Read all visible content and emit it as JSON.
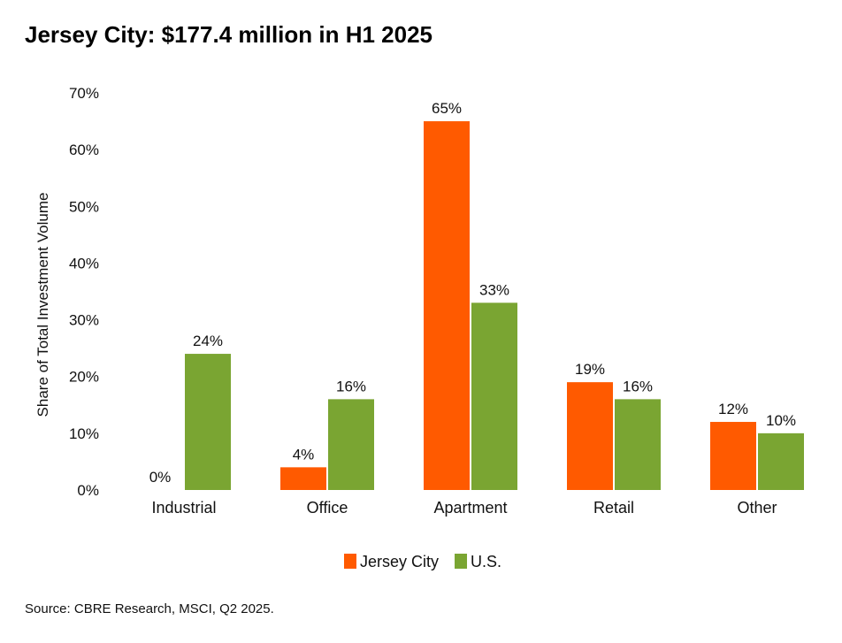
{
  "chart_data": {
    "type": "bar",
    "title": "Jersey City: $177.4 million in H1 2025",
    "ylabel": "Share of Total Investment Volume",
    "xlabel": "",
    "ylim": [
      0,
      70
    ],
    "yticks": [
      0,
      10,
      20,
      30,
      40,
      50,
      60,
      70
    ],
    "ytick_labels": [
      "0%",
      "10%",
      "20%",
      "30%",
      "40%",
      "50%",
      "60%",
      "70%"
    ],
    "categories": [
      "Industrial",
      "Office",
      "Apartment",
      "Retail",
      "Other"
    ],
    "series": [
      {
        "name": "Jersey City",
        "color": "#ff5a00",
        "values": [
          0,
          4,
          65,
          19,
          12
        ],
        "labels": [
          "0%",
          "4%",
          "65%",
          "19%",
          "12%"
        ]
      },
      {
        "name": "U.S.",
        "color": "#7aa532",
        "values": [
          24,
          16,
          33,
          16,
          10
        ],
        "labels": [
          "24%",
          "16%",
          "33%",
          "16%",
          "10%"
        ]
      }
    ],
    "grid": false,
    "legend": "bottom-center",
    "source": "Source: CBRE Research, MSCI, Q2 2025."
  }
}
